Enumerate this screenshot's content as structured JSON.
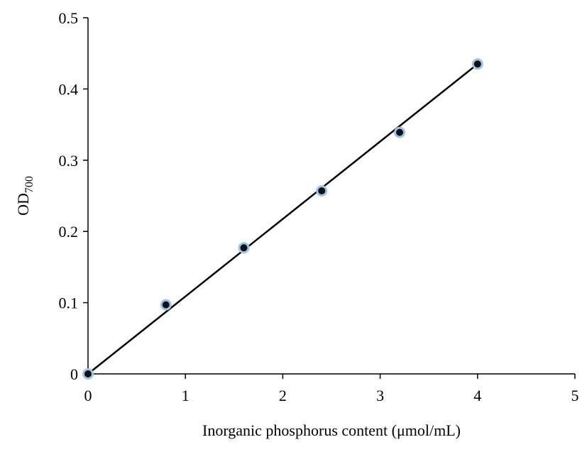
{
  "chart_data": {
    "type": "scatter",
    "x_label": "Inorganic  phosphorus content (μmol/mL)",
    "y_label": "OD",
    "y_label_subscript": "700",
    "series": [
      {
        "x": [
          0,
          0.8,
          1.6,
          2.4,
          3.2,
          4
        ],
        "values": [
          0,
          0.097,
          0.177,
          0.257,
          0.339,
          0.435
        ],
        "color": "#111111",
        "edge_color": "#9dc3e6"
      }
    ],
    "trendline": {
      "x": [
        0,
        4
      ],
      "values": [
        0,
        0.435
      ],
      "color": "#000000"
    },
    "xlim": [
      0,
      5
    ],
    "xticks": [
      0,
      1,
      2,
      3,
      4,
      5
    ],
    "ylim": [
      0,
      0.5
    ],
    "yticks": [
      0,
      0.1,
      0.2,
      0.3,
      0.4,
      0.5
    ]
  }
}
